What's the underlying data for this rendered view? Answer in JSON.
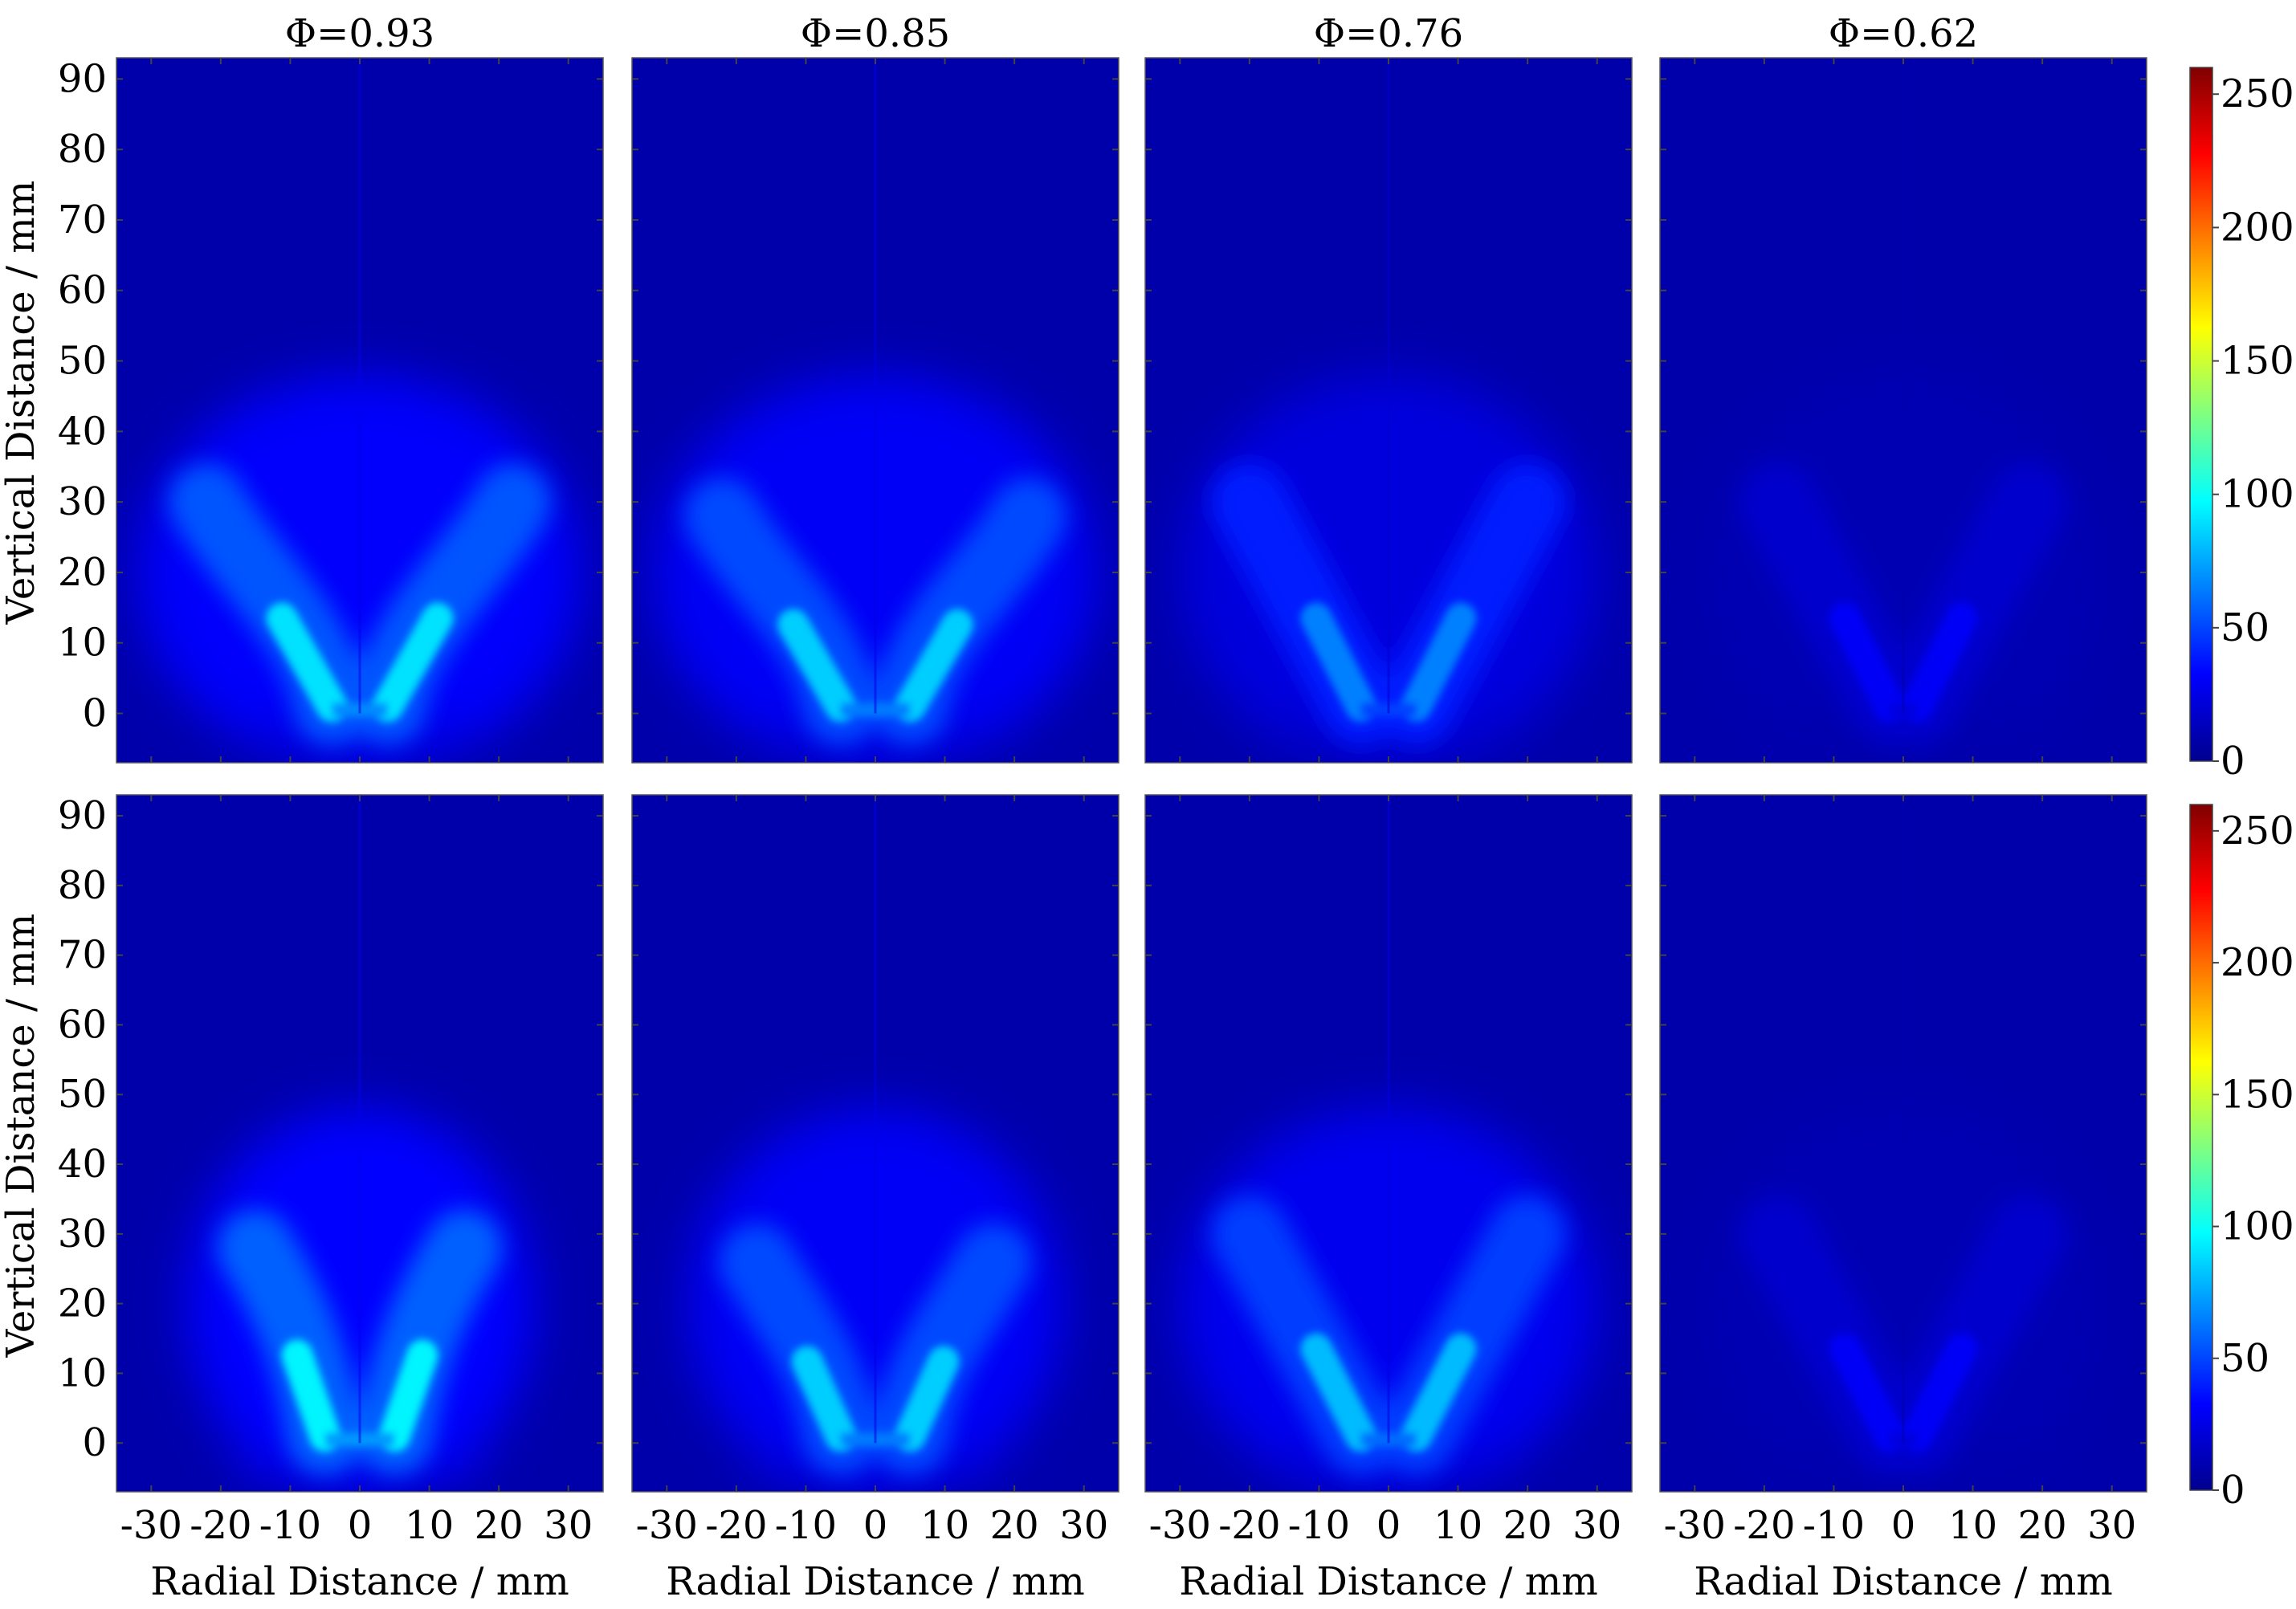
{
  "figure": {
    "colorbar_ticks": [
      0,
      50,
      100,
      150,
      200,
      250
    ],
    "colorbar_range": [
      0,
      260
    ],
    "colormap": [
      "#00008f",
      "#0000ff",
      "#0080ff",
      "#00ffff",
      "#80ff80",
      "#ffff00",
      "#ff8000",
      "#ff0000",
      "#800000"
    ]
  },
  "chart_data": [
    {
      "type": "heatmap",
      "row": "top",
      "title": "Φ=0.93",
      "xlabel": "",
      "ylabel": "Vertical Distance / mm",
      "xlim": [
        -35,
        35
      ],
      "ylim": [
        -7,
        93
      ],
      "xticks": [],
      "yticks": [
        0,
        10,
        20,
        30,
        40,
        50,
        60,
        70,
        80,
        90
      ],
      "flame": {
        "peak_value": 90,
        "base_half_width_mm": 4,
        "arm_end_x_mm": 22,
        "arm_end_y_mm": 30,
        "shape": "U"
      }
    },
    {
      "type": "heatmap",
      "row": "top",
      "title": "Φ=0.85",
      "xlabel": "",
      "ylabel": "",
      "xlim": [
        -35,
        35
      ],
      "ylim": [
        -7,
        93
      ],
      "xticks": [],
      "yticks": [],
      "flame": {
        "peak_value": 85,
        "base_half_width_mm": 5,
        "arm_end_x_mm": 22,
        "arm_end_y_mm": 28,
        "shape": "U"
      }
    },
    {
      "type": "heatmap",
      "row": "top",
      "title": "Φ=0.76",
      "xlabel": "",
      "ylabel": "",
      "xlim": [
        -35,
        35
      ],
      "ylim": [
        -7,
        93
      ],
      "xticks": [],
      "yticks": [],
      "flame": {
        "peak_value": 65,
        "base_half_width_mm": 4,
        "arm_end_x_mm": 20,
        "arm_end_y_mm": 30,
        "shape": "V"
      }
    },
    {
      "type": "heatmap",
      "row": "top",
      "title": "Φ=0.62",
      "xlabel": "",
      "ylabel": "",
      "xlim": [
        -35,
        35
      ],
      "ylim": [
        -7,
        93
      ],
      "xticks": [],
      "yticks": [],
      "flame": {
        "peak_value": 30,
        "base_half_width_mm": 2,
        "arm_end_x_mm": 18,
        "arm_end_y_mm": 30,
        "shape": "V"
      }
    },
    {
      "type": "heatmap",
      "row": "bottom",
      "title": "",
      "xlabel": "Radial Distance / mm",
      "ylabel": "Vertical Distance / mm",
      "xlim": [
        -35,
        35
      ],
      "ylim": [
        -7,
        93
      ],
      "xticks": [
        -30,
        -20,
        -10,
        0,
        10,
        20,
        30
      ],
      "yticks": [
        0,
        10,
        20,
        30,
        40,
        50,
        60,
        70,
        80,
        90
      ],
      "flame": {
        "peak_value": 95,
        "base_half_width_mm": 5,
        "arm_end_x_mm": 15,
        "arm_end_y_mm": 28,
        "shape": "U"
      }
    },
    {
      "type": "heatmap",
      "row": "bottom",
      "title": "",
      "xlabel": "Radial Distance / mm",
      "ylabel": "",
      "xlim": [
        -35,
        35
      ],
      "ylim": [
        -7,
        93
      ],
      "xticks": [
        -30,
        -20,
        -10,
        0,
        10,
        20,
        30
      ],
      "yticks": [],
      "flame": {
        "peak_value": 85,
        "base_half_width_mm": 5,
        "arm_end_x_mm": 17,
        "arm_end_y_mm": 26,
        "shape": "U"
      }
    },
    {
      "type": "heatmap",
      "row": "bottom",
      "title": "",
      "xlabel": "Radial Distance / mm",
      "ylabel": "",
      "xlim": [
        -35,
        35
      ],
      "ylim": [
        -7,
        93
      ],
      "xticks": [
        -30,
        -20,
        -10,
        0,
        10,
        20,
        30
      ],
      "yticks": [],
      "flame": {
        "peak_value": 80,
        "base_half_width_mm": 4,
        "arm_end_x_mm": 20,
        "arm_end_y_mm": 30,
        "shape": "V"
      }
    },
    {
      "type": "heatmap",
      "row": "bottom",
      "title": "",
      "xlabel": "Radial Distance / mm",
      "ylabel": "",
      "xlim": [
        -35,
        35
      ],
      "ylim": [
        -7,
        93
      ],
      "xticks": [
        -30,
        -20,
        -10,
        0,
        10,
        20,
        30
      ],
      "yticks": [],
      "flame": {
        "peak_value": 30,
        "base_half_width_mm": 2,
        "arm_end_x_mm": 18,
        "arm_end_y_mm": 30,
        "shape": "V"
      }
    }
  ]
}
